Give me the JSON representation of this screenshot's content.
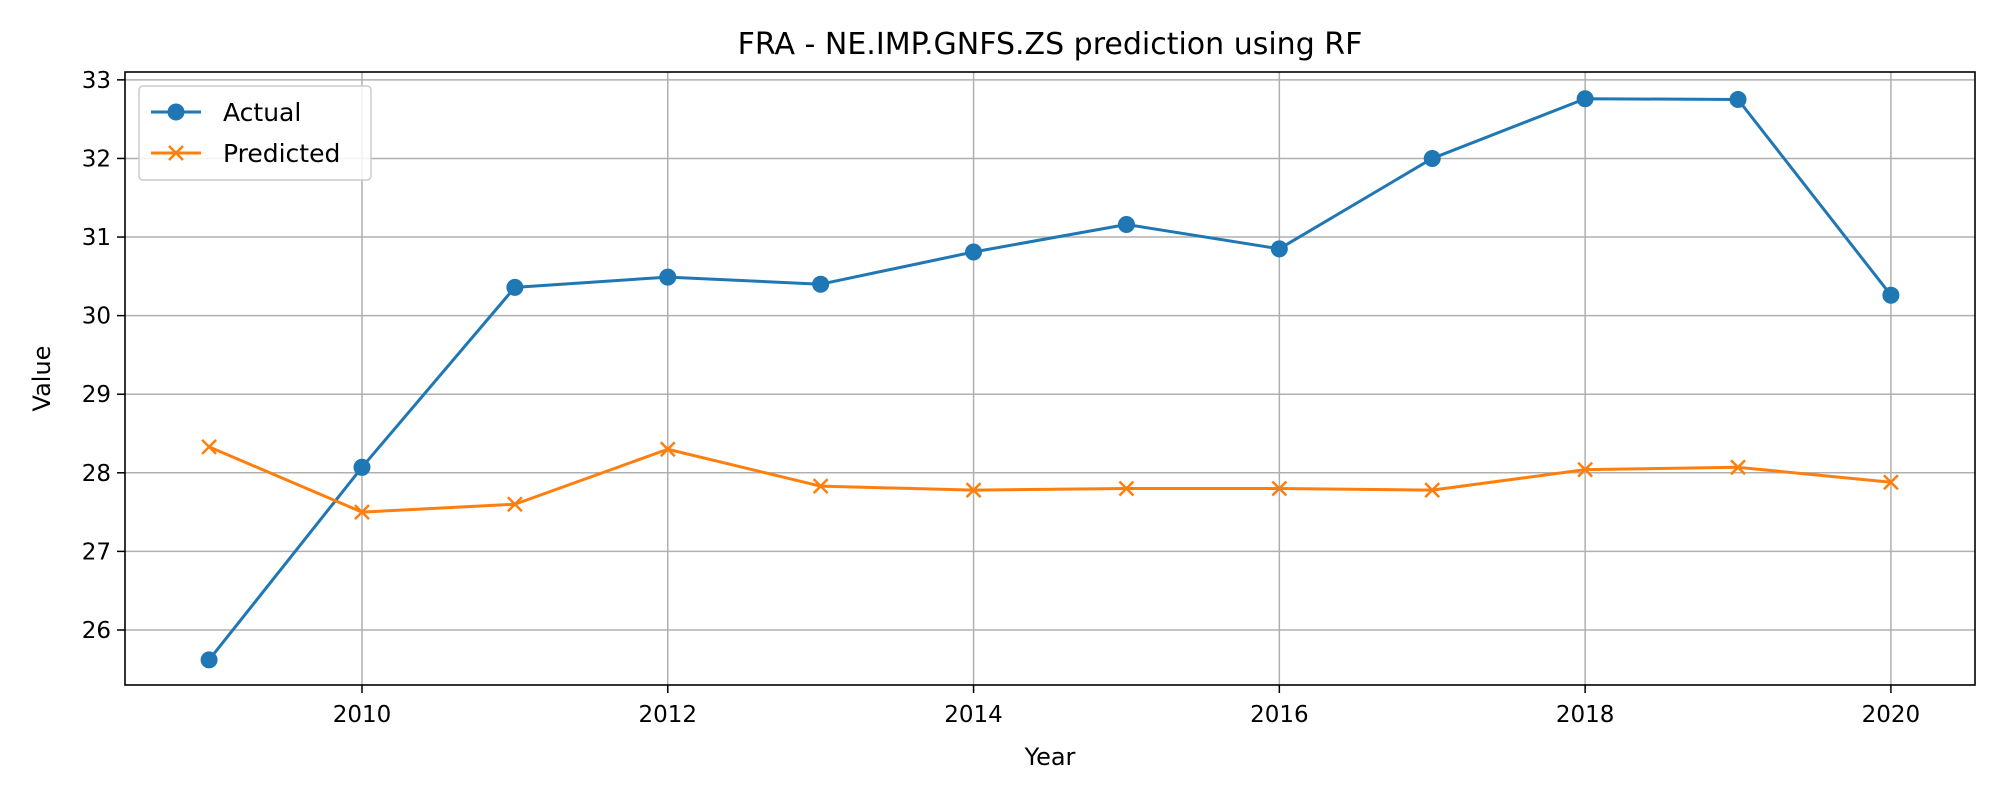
{
  "chart_data": {
    "type": "line",
    "title": "FRA - NE.IMP.GNFS.ZS prediction using RF",
    "xlabel": "Year",
    "ylabel": "Value",
    "x": [
      2009,
      2010,
      2011,
      2012,
      2013,
      2014,
      2015,
      2016,
      2017,
      2018,
      2019,
      2020
    ],
    "xlim": [
      2008.45,
      2020.55
    ],
    "ylim": [
      25.3,
      33.1
    ],
    "xticks": [
      2010,
      2012,
      2014,
      2016,
      2018,
      2020
    ],
    "yticks": [
      26,
      27,
      28,
      29,
      30,
      31,
      32,
      33
    ],
    "grid": true,
    "legend_position": "top-left",
    "series": [
      {
        "name": "Actual",
        "marker": "circle",
        "color": "#1f77b4",
        "values": [
          25.62,
          28.07,
          30.36,
          30.49,
          30.4,
          30.81,
          31.16,
          30.85,
          32.0,
          32.76,
          32.75,
          30.26
        ]
      },
      {
        "name": "Predicted",
        "marker": "x",
        "color": "#ff7f0e",
        "values": [
          28.33,
          27.5,
          27.6,
          28.3,
          27.83,
          27.78,
          27.8,
          27.8,
          27.78,
          28.04,
          28.07,
          27.88
        ]
      }
    ]
  }
}
